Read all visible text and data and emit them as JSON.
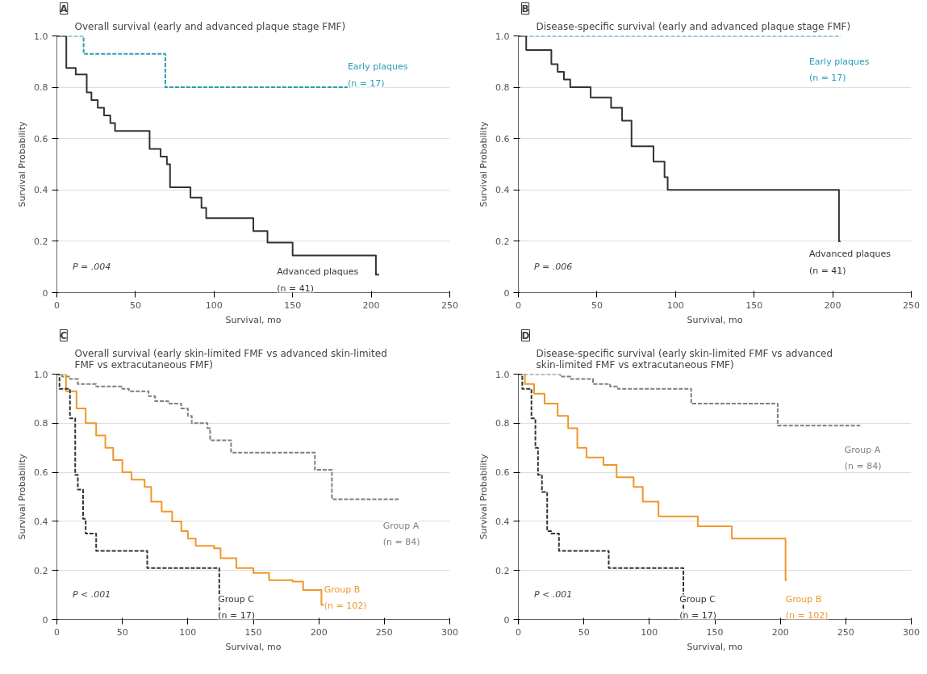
{
  "chart_data": [
    {
      "type": "step",
      "title": "Overall survival (early and advanced plaque stage FMF)",
      "xlabel": "Survival, mo",
      "ylabel": "Survival Probability",
      "xlim": [
        0,
        250
      ],
      "xticks": [
        0,
        50,
        100,
        150,
        200,
        250
      ],
      "ylim": [
        0,
        1
      ],
      "yticks": [
        {
          "value": 0,
          "label": "0"
        },
        {
          "value": 0.2,
          "label": "0.2"
        },
        {
          "value": 0.4,
          "label": "0.4"
        },
        {
          "value": 0.6,
          "label": "0.6"
        },
        {
          "value": 0.8,
          "label": "0.8"
        },
        {
          "value": 1,
          "label": "1.0"
        }
      ],
      "grid": "y",
      "legend": false,
      "annotations": [
        "A",
        "P = .004"
      ],
      "series": [
        {
          "name": "Early plaques (n = 17)",
          "color": "#2a9db5",
          "line_style": "dashed",
          "x": [
            0,
            17,
            69,
            204
          ],
          "values": [
            1,
            0.93,
            0.8,
            0.8
          ]
        },
        {
          "name": "Advanced plaques (n = 41)",
          "color": "#333333",
          "line_style": "solid",
          "x": [
            0,
            6,
            12,
            19,
            22,
            26,
            30,
            34,
            37,
            46,
            59,
            66,
            70,
            72,
            85,
            92,
            95,
            125,
            134,
            150,
            203,
            205
          ],
          "values": [
            1,
            0.875,
            0.85,
            0.78,
            0.75,
            0.72,
            0.69,
            0.66,
            0.63,
            0.63,
            0.56,
            0.53,
            0.5,
            0.41,
            0.37,
            0.33,
            0.29,
            0.24,
            0.195,
            0.145,
            0.07,
            0.07
          ]
        }
      ]
    },
    {
      "type": "step",
      "title": "Disease-specific survival (early and advanced plaque stage FMF)",
      "xlabel": "Survival, mo",
      "ylabel": "Survival Probability",
      "xlim": [
        0,
        250
      ],
      "xticks": [
        0,
        50,
        100,
        150,
        200,
        250
      ],
      "ylim": [
        0,
        1
      ],
      "yticks": [
        {
          "value": 0,
          "label": "0"
        },
        {
          "value": 0.2,
          "label": "0.2"
        },
        {
          "value": 0.4,
          "label": "0.4"
        },
        {
          "value": 0.6,
          "label": "0.6"
        },
        {
          "value": 0.8,
          "label": "0.8"
        },
        {
          "value": 1,
          "label": "1.0"
        }
      ],
      "grid": "y",
      "legend": false,
      "annotations": [
        "B",
        "P = .006"
      ],
      "series": [
        {
          "name": "Early plaques (n = 17)",
          "color": "#2a9db5",
          "line_style": "dashed",
          "x": [
            0,
            205
          ],
          "values": [
            1,
            1
          ]
        },
        {
          "name": "Advanced plaques (n = 41)",
          "color": "#333333",
          "line_style": "solid",
          "x": [
            0,
            5,
            21,
            25,
            29,
            33,
            46,
            59,
            66,
            72,
            86,
            93,
            95,
            204,
            205
          ],
          "values": [
            1,
            0.945,
            0.89,
            0.86,
            0.83,
            0.8,
            0.76,
            0.72,
            0.67,
            0.57,
            0.51,
            0.45,
            0.4,
            0.2,
            0.2
          ]
        }
      ]
    },
    {
      "type": "step",
      "title": "Overall survival (early skin-limited FMF vs advanced skin-limited FMF vs extracutaneous FMF)",
      "xlabel": "Survival, mo",
      "ylabel": "Survival Probability",
      "xlim": [
        0,
        300
      ],
      "xticks": [
        0,
        50,
        100,
        150,
        200,
        250,
        300
      ],
      "ylim": [
        0,
        1
      ],
      "yticks": [
        {
          "value": 0,
          "label": "0"
        },
        {
          "value": 0.2,
          "label": "0.2"
        },
        {
          "value": 0.4,
          "label": "0.4"
        },
        {
          "value": 0.6,
          "label": "0.6"
        },
        {
          "value": 0.8,
          "label": "0.8"
        },
        {
          "value": 1,
          "label": "1.0"
        }
      ],
      "grid": "y",
      "legend": false,
      "annotations": [
        "C",
        "P < .001"
      ],
      "series": [
        {
          "name": "Group A (n = 84)",
          "color": "#7f7f7f",
          "line_style": "dashed",
          "x": [
            0,
            4,
            10,
            16,
            30,
            50,
            55,
            70,
            75,
            85,
            95,
            100,
            103,
            115,
            117,
            133,
            197,
            210,
            261
          ],
          "values": [
            1,
            0.99,
            0.98,
            0.96,
            0.95,
            0.94,
            0.93,
            0.91,
            0.89,
            0.88,
            0.86,
            0.83,
            0.8,
            0.78,
            0.73,
            0.68,
            0.61,
            0.49,
            0.49
          ]
        },
        {
          "name": "Group B (n = 102)",
          "color": "#f0962a",
          "line_style": "solid",
          "x": [
            0,
            7,
            15,
            22,
            30,
            37,
            43,
            50,
            57,
            67,
            72,
            80,
            88,
            95,
            100,
            106,
            120,
            125,
            137,
            150,
            162,
            180,
            188,
            202,
            204
          ],
          "values": [
            1,
            0.93,
            0.86,
            0.8,
            0.75,
            0.7,
            0.65,
            0.6,
            0.57,
            0.54,
            0.48,
            0.44,
            0.4,
            0.36,
            0.33,
            0.3,
            0.29,
            0.25,
            0.21,
            0.19,
            0.16,
            0.155,
            0.12,
            0.06,
            0.06
          ]
        },
        {
          "name": "Group C (n = 17)",
          "color": "#333333",
          "line_style": "dashed",
          "x": [
            0,
            2,
            10,
            14,
            16,
            20,
            22,
            30,
            69,
            124
          ],
          "values": [
            1,
            0.94,
            0.82,
            0.59,
            0.53,
            0.41,
            0.35,
            0.28,
            0.21,
            0
          ]
        }
      ]
    },
    {
      "type": "step",
      "title": "Disease-specific survival (early skin-limited FMF vs advanced skin-limited FMF vs extracutaneous FMF)",
      "xlabel": "Survival, mo",
      "ylabel": "Survival Probability",
      "xlim": [
        0,
        300
      ],
      "xticks": [
        0,
        50,
        100,
        150,
        200,
        250,
        300
      ],
      "ylim": [
        0,
        1
      ],
      "yticks": [
        {
          "value": 0,
          "label": "0"
        },
        {
          "value": 0.2,
          "label": "0.2"
        },
        {
          "value": 0.4,
          "label": "0.4"
        },
        {
          "value": 0.6,
          "label": "0.6"
        },
        {
          "value": 0.8,
          "label": "0.8"
        },
        {
          "value": 1,
          "label": "1.0"
        }
      ],
      "grid": "y",
      "legend": false,
      "annotations": [
        "D",
        "P < .001"
      ],
      "series": [
        {
          "name": "Group A (n = 84)",
          "color": "#7f7f7f",
          "line_style": "dashed",
          "x": [
            0,
            32,
            40,
            57,
            70,
            76,
            132,
            198,
            261
          ],
          "values": [
            1,
            0.99,
            0.98,
            0.96,
            0.95,
            0.94,
            0.88,
            0.79,
            0.79
          ]
        },
        {
          "name": "Group B (n = 102)",
          "color": "#f0962a",
          "line_style": "solid",
          "x": [
            0,
            5,
            12,
            20,
            30,
            38,
            45,
            52,
            65,
            75,
            88,
            95,
            107,
            137,
            163,
            204,
            205
          ],
          "values": [
            1,
            0.96,
            0.92,
            0.88,
            0.83,
            0.78,
            0.7,
            0.66,
            0.63,
            0.58,
            0.54,
            0.48,
            0.42,
            0.38,
            0.33,
            0.16,
            0.16
          ]
        },
        {
          "name": "Group C (n = 17)",
          "color": "#333333",
          "line_style": "dashed",
          "x": [
            0,
            3,
            10,
            13,
            15,
            18,
            22,
            25,
            31,
            69,
            126
          ],
          "values": [
            1,
            0.94,
            0.82,
            0.7,
            0.59,
            0.52,
            0.36,
            0.35,
            0.28,
            0.21,
            0
          ]
        }
      ]
    }
  ]
}
